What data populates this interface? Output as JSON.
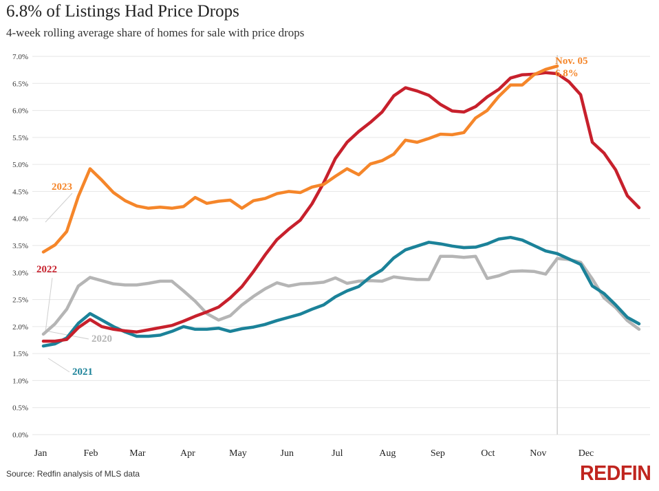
{
  "title": "6.8% of Listings Had Price Drops",
  "subtitle": "4-week rolling average share of homes for sale with price drops",
  "source": "Source: Redfin analysis of MLS data",
  "brand": "REDFIN",
  "annotation": {
    "date": "Nov. 05",
    "value": "6.8%"
  },
  "colors": {
    "2020": "#b5b5b5",
    "2021": "#1b8299",
    "2022": "#c7202c",
    "2023": "#f5862a",
    "brand": "#c0251f",
    "grid": "#e6e6e6",
    "marker": "#d0d0d0"
  },
  "chart_data": {
    "type": "line",
    "title": "6.8% of Listings Had Price Drops",
    "subtitle": "4-week rolling average share of homes for sale with price drops",
    "x_unit": "week of year",
    "categories": [
      "Jan",
      "Feb",
      "Mar",
      "Apr",
      "May",
      "Jun",
      "Jul",
      "Aug",
      "Sep",
      "Oct",
      "Nov",
      "Dec"
    ],
    "yticks": [
      "7.0%",
      "6.5%",
      "6.0%",
      "5.5%",
      "5.0%",
      "4.5%",
      "4.0%",
      "3.5%",
      "3.0%",
      "2.5%",
      "2.0%",
      "1.5%",
      "1.0%",
      "0.5%",
      "0.0%"
    ],
    "ylim": [
      0,
      7
    ],
    "grid": true,
    "legend": "direct labels on lines",
    "series": [
      {
        "name": "2020",
        "values": [
          [
            1,
            1.86
          ],
          [
            2,
            2.05
          ],
          [
            3,
            2.32
          ],
          [
            4,
            2.75
          ],
          [
            5,
            2.91
          ],
          [
            6,
            2.85
          ],
          [
            7,
            2.79
          ],
          [
            8,
            2.77
          ],
          [
            9,
            2.77
          ],
          [
            10,
            2.8
          ],
          [
            11,
            2.84
          ],
          [
            12,
            2.84
          ],
          [
            13,
            2.66
          ],
          [
            14,
            2.47
          ],
          [
            15,
            2.24
          ],
          [
            16,
            2.12
          ],
          [
            17,
            2.2
          ],
          [
            18,
            2.4
          ],
          [
            19,
            2.56
          ],
          [
            20,
            2.7
          ],
          [
            21,
            2.81
          ],
          [
            22,
            2.75
          ],
          [
            23,
            2.79
          ],
          [
            24,
            2.8
          ],
          [
            25,
            2.82
          ],
          [
            26,
            2.9
          ],
          [
            27,
            2.8
          ],
          [
            28,
            2.84
          ],
          [
            29,
            2.85
          ],
          [
            30,
            2.84
          ],
          [
            31,
            2.92
          ],
          [
            32,
            2.89
          ],
          [
            33,
            2.87
          ],
          [
            34,
            2.87
          ],
          [
            35,
            3.3
          ],
          [
            36,
            3.3
          ],
          [
            37,
            3.28
          ],
          [
            38,
            3.3
          ],
          [
            39,
            2.89
          ],
          [
            40,
            2.94
          ],
          [
            41,
            3.02
          ],
          [
            42,
            3.03
          ],
          [
            43,
            3.02
          ],
          [
            44,
            2.97
          ],
          [
            45,
            3.26
          ],
          [
            46,
            3.24
          ],
          [
            47,
            3.19
          ],
          [
            48,
            2.88
          ],
          [
            49,
            2.53
          ],
          [
            50,
            2.35
          ],
          [
            51,
            2.11
          ],
          [
            52,
            1.95
          ]
        ]
      },
      {
        "name": "2021",
        "values": [
          [
            1,
            1.64
          ],
          [
            2,
            1.68
          ],
          [
            3,
            1.79
          ],
          [
            4,
            2.06
          ],
          [
            5,
            2.24
          ],
          [
            6,
            2.12
          ],
          [
            7,
            2.0
          ],
          [
            8,
            1.9
          ],
          [
            9,
            1.82
          ],
          [
            10,
            1.82
          ],
          [
            11,
            1.84
          ],
          [
            12,
            1.91
          ],
          [
            13,
            2.0
          ],
          [
            14,
            1.95
          ],
          [
            15,
            1.95
          ],
          [
            16,
            1.97
          ],
          [
            17,
            1.91
          ],
          [
            18,
            1.96
          ],
          [
            19,
            1.99
          ],
          [
            20,
            2.04
          ],
          [
            21,
            2.11
          ],
          [
            22,
            2.17
          ],
          [
            23,
            2.23
          ],
          [
            24,
            2.32
          ],
          [
            25,
            2.4
          ],
          [
            26,
            2.55
          ],
          [
            27,
            2.66
          ],
          [
            28,
            2.74
          ],
          [
            29,
            2.92
          ],
          [
            30,
            3.05
          ],
          [
            31,
            3.27
          ],
          [
            32,
            3.42
          ],
          [
            33,
            3.49
          ],
          [
            34,
            3.56
          ],
          [
            35,
            3.53
          ],
          [
            36,
            3.49
          ],
          [
            37,
            3.46
          ],
          [
            38,
            3.47
          ],
          [
            39,
            3.53
          ],
          [
            40,
            3.62
          ],
          [
            41,
            3.65
          ],
          [
            42,
            3.6
          ],
          [
            43,
            3.5
          ],
          [
            44,
            3.4
          ],
          [
            45,
            3.35
          ],
          [
            46,
            3.25
          ],
          [
            47,
            3.15
          ],
          [
            48,
            2.75
          ],
          [
            49,
            2.61
          ],
          [
            50,
            2.4
          ],
          [
            51,
            2.17
          ],
          [
            52,
            2.05
          ]
        ]
      },
      {
        "name": "2022",
        "values": [
          [
            1,
            1.73
          ],
          [
            2,
            1.73
          ],
          [
            3,
            1.76
          ],
          [
            4,
            1.98
          ],
          [
            5,
            2.13
          ],
          [
            6,
            2.0
          ],
          [
            7,
            1.95
          ],
          [
            8,
            1.92
          ],
          [
            9,
            1.9
          ],
          [
            10,
            1.94
          ],
          [
            11,
            1.98
          ],
          [
            12,
            2.02
          ],
          [
            13,
            2.1
          ],
          [
            14,
            2.19
          ],
          [
            15,
            2.27
          ],
          [
            16,
            2.36
          ],
          [
            17,
            2.53
          ],
          [
            18,
            2.74
          ],
          [
            19,
            3.02
          ],
          [
            20,
            3.33
          ],
          [
            21,
            3.61
          ],
          [
            22,
            3.8
          ],
          [
            23,
            3.97
          ],
          [
            24,
            4.27
          ],
          [
            25,
            4.66
          ],
          [
            26,
            5.11
          ],
          [
            27,
            5.41
          ],
          [
            28,
            5.61
          ],
          [
            29,
            5.78
          ],
          [
            30,
            5.97
          ],
          [
            31,
            6.27
          ],
          [
            32,
            6.42
          ],
          [
            33,
            6.36
          ],
          [
            34,
            6.28
          ],
          [
            35,
            6.11
          ],
          [
            36,
            5.99
          ],
          [
            37,
            5.97
          ],
          [
            38,
            6.07
          ],
          [
            39,
            6.25
          ],
          [
            40,
            6.39
          ],
          [
            41,
            6.6
          ],
          [
            42,
            6.66
          ],
          [
            43,
            6.67
          ],
          [
            44,
            6.7
          ],
          [
            45,
            6.68
          ],
          [
            46,
            6.53
          ],
          [
            47,
            6.29
          ],
          [
            48,
            5.41
          ],
          [
            49,
            5.21
          ],
          [
            50,
            4.9
          ],
          [
            51,
            4.42
          ],
          [
            52,
            4.2
          ]
        ]
      },
      {
        "name": "2023",
        "values": [
          [
            1,
            3.38
          ],
          [
            2,
            3.51
          ],
          [
            3,
            3.76
          ],
          [
            4,
            4.41
          ],
          [
            5,
            4.92
          ],
          [
            6,
            4.71
          ],
          [
            7,
            4.48
          ],
          [
            8,
            4.33
          ],
          [
            9,
            4.23
          ],
          [
            10,
            4.19
          ],
          [
            11,
            4.21
          ],
          [
            12,
            4.19
          ],
          [
            13,
            4.22
          ],
          [
            14,
            4.39
          ],
          [
            15,
            4.28
          ],
          [
            16,
            4.32
          ],
          [
            17,
            4.34
          ],
          [
            18,
            4.19
          ],
          [
            19,
            4.33
          ],
          [
            20,
            4.37
          ],
          [
            21,
            4.46
          ],
          [
            22,
            4.5
          ],
          [
            23,
            4.48
          ],
          [
            24,
            4.58
          ],
          [
            25,
            4.63
          ],
          [
            26,
            4.78
          ],
          [
            27,
            4.92
          ],
          [
            28,
            4.81
          ],
          [
            29,
            5.01
          ],
          [
            30,
            5.07
          ],
          [
            31,
            5.19
          ],
          [
            32,
            5.45
          ],
          [
            33,
            5.41
          ],
          [
            34,
            5.48
          ],
          [
            35,
            5.56
          ],
          [
            36,
            5.55
          ],
          [
            37,
            5.59
          ],
          [
            38,
            5.86
          ],
          [
            39,
            6.0
          ],
          [
            40,
            6.26
          ],
          [
            41,
            6.47
          ],
          [
            42,
            6.47
          ],
          [
            43,
            6.66
          ],
          [
            44,
            6.76
          ],
          [
            45,
            6.82
          ]
        ]
      }
    ],
    "annotations": [
      {
        "x": 45,
        "text": "Nov. 05",
        "value": "6.8%"
      }
    ]
  }
}
